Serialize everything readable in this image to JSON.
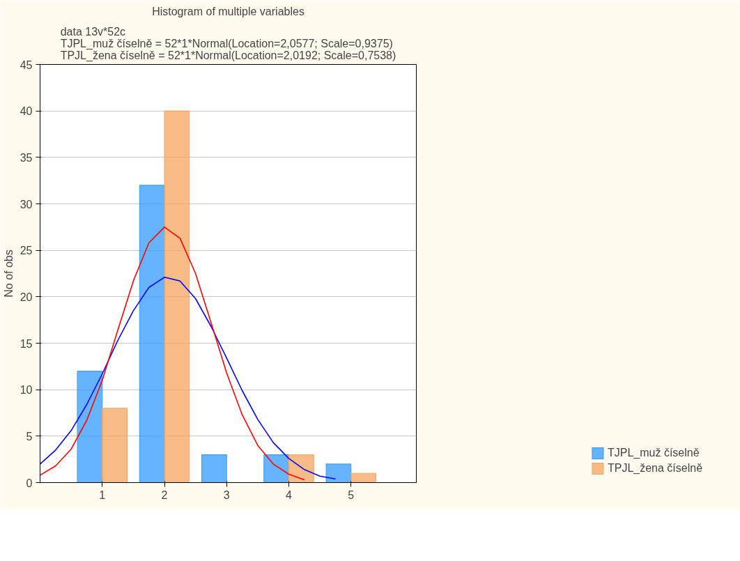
{
  "chart_data": {
    "type": "bar",
    "title": "Histogram of multiple variables",
    "subtitle": "data 13v*52c\nTJPL_muž číselně = 52*1*Normal(Location=2,0577; Scale=0,9375)\nTPJL_žena číselně = 52*1*Normal(Location=2,0192; Scale=0,7538)",
    "ylabel": "No of obs",
    "x": [
      1,
      2,
      3,
      4,
      5
    ],
    "series": [
      {
        "name": "TJPL_muž číselně",
        "color": "#3399ff",
        "values": [
          12,
          32,
          3,
          3,
          2
        ]
      },
      {
        "name": "TPJL_žena číselně",
        "color": "#f4a460",
        "values": [
          8,
          40,
          0,
          3,
          1
        ]
      },
      {
        "type": "line",
        "color": "#0000ff",
        "x": [
          0,
          0.25,
          0.5,
          0.75,
          1,
          1.25,
          1.5,
          1.75,
          2,
          2.25,
          2.5,
          2.75,
          3,
          3.25,
          3.5,
          3.75,
          4,
          4.25,
          4.5,
          4.75
        ],
        "values": [
          2.0,
          3.5,
          5.6,
          8.4,
          11.7,
          15.3,
          18.5,
          21.0,
          22.1,
          21.7,
          19.8,
          16.8,
          13.4,
          9.9,
          6.8,
          4.3,
          2.6,
          1.4,
          0.7,
          0.4
        ]
      },
      {
        "type": "line",
        "color": "#ff0000",
        "x": [
          0,
          0.25,
          0.5,
          0.75,
          1,
          1.25,
          1.5,
          1.75,
          2,
          2.25,
          2.5,
          2.75,
          3,
          3.25,
          3.5,
          3.75,
          4,
          4.25
        ],
        "values": [
          0.8,
          1.8,
          3.6,
          6.7,
          11.0,
          16.4,
          21.7,
          25.8,
          27.5,
          26.3,
          22.5,
          17.2,
          11.8,
          7.3,
          4.0,
          2.0,
          0.9,
          0.3
        ]
      }
    ],
    "xlim": [
      0,
      6.05
    ],
    "xticks": [
      1,
      2,
      3,
      4,
      5
    ],
    "ylim": [
      0,
      45
    ],
    "yticks": [
      0,
      5,
      10,
      15,
      20,
      25,
      30,
      35,
      40,
      45
    ],
    "grid": "y",
    "legend": "bottom right"
  }
}
